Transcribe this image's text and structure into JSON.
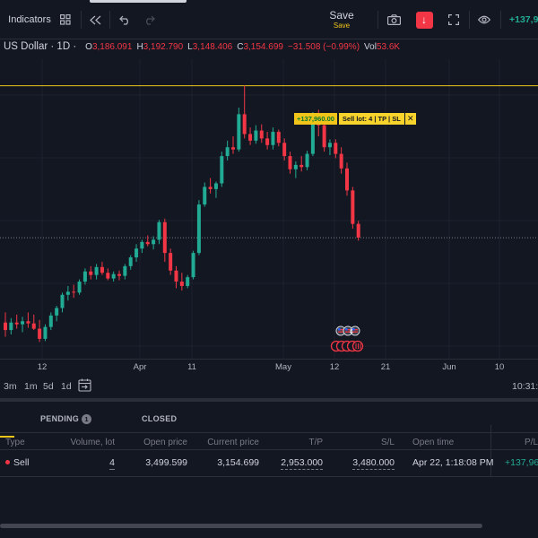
{
  "toolbar": {
    "indicators_label": "Indicators",
    "save_label": "Save",
    "save_sublabel": "Save",
    "pnl_value": "+137,9"
  },
  "legend": {
    "symbol": "US Dollar · 1D ·",
    "open_label": "O",
    "open_value": "3,186.091",
    "high_label": "H",
    "high_value": "3,192.790",
    "low_label": "L",
    "low_value": "3,148.406",
    "close_label": "C",
    "close_value": "3,154.699",
    "change_value": "−31.508 (−0.99%)",
    "vol_label": "Vol",
    "vol_value": "53.6K"
  },
  "sell_line": {
    "pnl_label": "+137,960.00",
    "lot_label": "Sell lot: 4 | TP | SL",
    "close_glyph": "✕",
    "color": "#f0c419"
  },
  "chart_data": {
    "type": "candlestick",
    "x_ticks": [
      "12",
      "Apr",
      "11",
      "May",
      "12",
      "21",
      "Jun",
      "10"
    ],
    "up_color": "#22ab94",
    "down_color": "#f23645",
    "sell_price_level": 3499.599,
    "current_price_level": 3154.699,
    "ylim": [
      2880,
      3560
    ],
    "candles": [
      {
        "o": 2962,
        "h": 2985,
        "l": 2930,
        "c": 2945
      },
      {
        "o": 2945,
        "h": 2972,
        "l": 2935,
        "c": 2962
      },
      {
        "o": 2962,
        "h": 2980,
        "l": 2948,
        "c": 2958
      },
      {
        "o": 2958,
        "h": 2975,
        "l": 2940,
        "c": 2965
      },
      {
        "o": 2965,
        "h": 2985,
        "l": 2950,
        "c": 2960
      },
      {
        "o": 2960,
        "h": 2980,
        "l": 2945,
        "c": 2948
      },
      {
        "o": 2948,
        "h": 2968,
        "l": 2918,
        "c": 2925
      },
      {
        "o": 2925,
        "h": 2958,
        "l": 2920,
        "c": 2952
      },
      {
        "o": 2952,
        "h": 2985,
        "l": 2945,
        "c": 2978
      },
      {
        "o": 2978,
        "h": 3000,
        "l": 2965,
        "c": 2995
      },
      {
        "o": 2995,
        "h": 3030,
        "l": 2985,
        "c": 3025
      },
      {
        "o": 3025,
        "h": 3045,
        "l": 3012,
        "c": 3032
      },
      {
        "o": 3032,
        "h": 3048,
        "l": 3018,
        "c": 3030
      },
      {
        "o": 3030,
        "h": 3060,
        "l": 3025,
        "c": 3055
      },
      {
        "o": 3055,
        "h": 3085,
        "l": 3048,
        "c": 3078
      },
      {
        "o": 3078,
        "h": 3090,
        "l": 3060,
        "c": 3070
      },
      {
        "o": 3070,
        "h": 3095,
        "l": 3060,
        "c": 3088
      },
      {
        "o": 3088,
        "h": 3100,
        "l": 3070,
        "c": 3075
      },
      {
        "o": 3075,
        "h": 3085,
        "l": 3058,
        "c": 3062
      },
      {
        "o": 3062,
        "h": 3078,
        "l": 3055,
        "c": 3072
      },
      {
        "o": 3072,
        "h": 3080,
        "l": 3058,
        "c": 3068
      },
      {
        "o": 3068,
        "h": 3095,
        "l": 3060,
        "c": 3090
      },
      {
        "o": 3090,
        "h": 3115,
        "l": 3082,
        "c": 3110
      },
      {
        "o": 3110,
        "h": 3140,
        "l": 3100,
        "c": 3130
      },
      {
        "o": 3130,
        "h": 3150,
        "l": 3120,
        "c": 3145
      },
      {
        "o": 3145,
        "h": 3160,
        "l": 3135,
        "c": 3140
      },
      {
        "o": 3140,
        "h": 3158,
        "l": 3128,
        "c": 3150
      },
      {
        "o": 3150,
        "h": 3195,
        "l": 3140,
        "c": 3190
      },
      {
        "o": 3190,
        "h": 3198,
        "l": 3100,
        "c": 3120
      },
      {
        "o": 3120,
        "h": 3130,
        "l": 3070,
        "c": 3080
      },
      {
        "o": 3080,
        "h": 3090,
        "l": 3040,
        "c": 3055
      },
      {
        "o": 3055,
        "h": 3075,
        "l": 3035,
        "c": 3045
      },
      {
        "o": 3045,
        "h": 3070,
        "l": 3040,
        "c": 3065
      },
      {
        "o": 3065,
        "h": 3125,
        "l": 3060,
        "c": 3120
      },
      {
        "o": 3120,
        "h": 3240,
        "l": 3115,
        "c": 3230
      },
      {
        "o": 3230,
        "h": 3280,
        "l": 3225,
        "c": 3270
      },
      {
        "o": 3270,
        "h": 3290,
        "l": 3255,
        "c": 3265
      },
      {
        "o": 3265,
        "h": 3282,
        "l": 3245,
        "c": 3278
      },
      {
        "o": 3278,
        "h": 3350,
        "l": 3270,
        "c": 3340
      },
      {
        "o": 3340,
        "h": 3375,
        "l": 3330,
        "c": 3360
      },
      {
        "o": 3360,
        "h": 3385,
        "l": 3345,
        "c": 3355
      },
      {
        "o": 3355,
        "h": 3450,
        "l": 3350,
        "c": 3435
      },
      {
        "o": 3435,
        "h": 3500,
        "l": 3380,
        "c": 3390
      },
      {
        "o": 3390,
        "h": 3405,
        "l": 3365,
        "c": 3375
      },
      {
        "o": 3375,
        "h": 3410,
        "l": 3368,
        "c": 3398
      },
      {
        "o": 3398,
        "h": 3412,
        "l": 3370,
        "c": 3380
      },
      {
        "o": 3380,
        "h": 3395,
        "l": 3355,
        "c": 3365
      },
      {
        "o": 3365,
        "h": 3405,
        "l": 3355,
        "c": 3395
      },
      {
        "o": 3395,
        "h": 3400,
        "l": 3362,
        "c": 3370
      },
      {
        "o": 3370,
        "h": 3380,
        "l": 3330,
        "c": 3340
      },
      {
        "o": 3340,
        "h": 3350,
        "l": 3300,
        "c": 3310
      },
      {
        "o": 3310,
        "h": 3328,
        "l": 3290,
        "c": 3320
      },
      {
        "o": 3320,
        "h": 3340,
        "l": 3305,
        "c": 3315
      },
      {
        "o": 3315,
        "h": 3352,
        "l": 3308,
        "c": 3345
      },
      {
        "o": 3345,
        "h": 3440,
        "l": 3340,
        "c": 3420
      },
      {
        "o": 3420,
        "h": 3445,
        "l": 3385,
        "c": 3410
      },
      {
        "o": 3410,
        "h": 3425,
        "l": 3350,
        "c": 3360
      },
      {
        "o": 3360,
        "h": 3378,
        "l": 3342,
        "c": 3370
      },
      {
        "o": 3370,
        "h": 3378,
        "l": 3335,
        "c": 3345
      },
      {
        "o": 3345,
        "h": 3360,
        "l": 3300,
        "c": 3312
      },
      {
        "o": 3312,
        "h": 3325,
        "l": 3250,
        "c": 3262
      },
      {
        "o": 3262,
        "h": 3270,
        "l": 3175,
        "c": 3186
      },
      {
        "o": 3186,
        "h": 3193,
        "l": 3148,
        "c": 3155
      }
    ]
  },
  "trade_markers": {
    "flags": [
      "US",
      "US",
      "US"
    ],
    "count_label": "4",
    "icons": [
      "sell",
      "sell",
      "sell",
      "sell",
      "sell"
    ]
  },
  "range_bar": {
    "ranges": [
      "3m",
      "1m",
      "5d",
      "1d"
    ],
    "clock": "10:31:"
  },
  "panel": {
    "tabs": {
      "pending": "PENDING",
      "pending_count": "1",
      "closed": "CLOSED"
    },
    "headers": {
      "type": "Type",
      "volume": "Volume, lot",
      "open_price": "Open price",
      "current_price": "Current price",
      "tp": "T/P",
      "sl": "S/L",
      "open_time": "Open time",
      "pl": "P/L"
    },
    "row": {
      "type": "Sell",
      "volume": "4",
      "open_price": "3,499.599",
      "current_price": "3,154.699",
      "tp": "2,953.000",
      "sl": "3,480.000",
      "open_time": "Apr 22, 1:18:08 PM",
      "pl": "+137,96"
    }
  }
}
